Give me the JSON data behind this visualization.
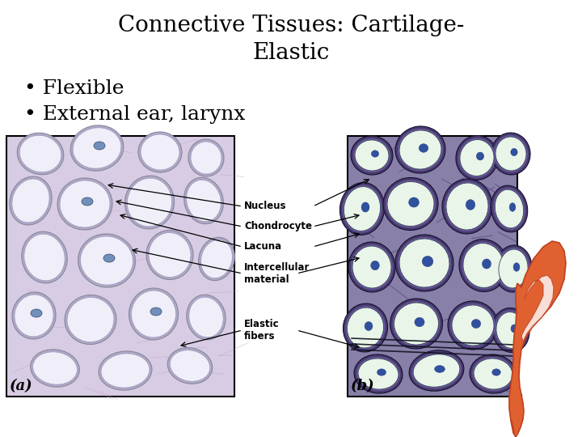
{
  "title_line1": "Connective Tissues: Cartilage-",
  "title_line2": "Elastic",
  "bullet1": "Flexible",
  "bullet2": "External ear, larynx",
  "label_a": "(a)",
  "label_b": "(b)",
  "bg_color": "#ffffff",
  "title_fontsize": 20,
  "bullet_fontsize": 18,
  "panel_a_bg": "#d8cce4",
  "panel_b_bg": "#8880a8",
  "panel_b_dark": "#4a3a6a",
  "cell_a_fill": "#f0eef8",
  "cell_a_ring": "#b0a8c8",
  "nucleus_color": "#7090bb",
  "cell_b_fill": "#e8f5e8",
  "cell_b_ring": "#302050",
  "fiber_color": "#aa88bb",
  "ear_color": "#e06030",
  "ear_dark": "#c04020"
}
